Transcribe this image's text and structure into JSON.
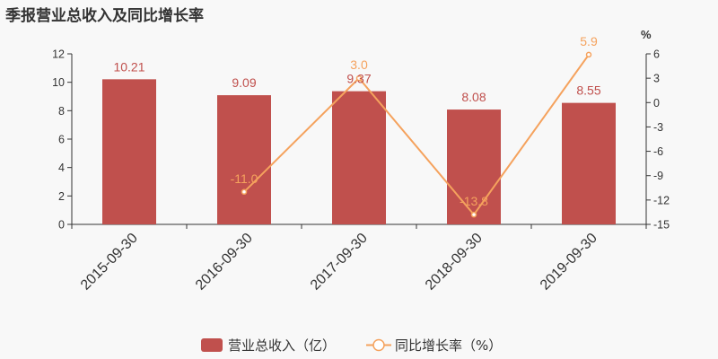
{
  "title": "季报营业总收入及同比增长率",
  "chart_data": {
    "type": "bar",
    "categories": [
      "2015-09-30",
      "2016-09-30",
      "2017-09-30",
      "2018-09-30",
      "2019-09-30"
    ],
    "series": [
      {
        "name": "营业总收入（亿）",
        "type": "bar",
        "axis": "left",
        "color": "#c0504d",
        "values": [
          10.21,
          9.09,
          9.37,
          8.08,
          8.55
        ],
        "labels": [
          "10.21",
          "9.09",
          "9.37",
          "8.08",
          "8.55"
        ]
      },
      {
        "name": "同比增长率（%）",
        "type": "line",
        "axis": "right",
        "color": "#f5a25d",
        "values": [
          null,
          -11.0,
          3.0,
          -13.8,
          5.9
        ],
        "labels": [
          "",
          "-11.0",
          "3.0",
          "-13.8",
          "5.9"
        ]
      }
    ],
    "left_axis": {
      "min": 0,
      "max": 12,
      "ticks": [
        "0",
        "2",
        "4",
        "6",
        "8",
        "10",
        "12"
      ]
    },
    "right_axis": {
      "min": -15,
      "max": 6,
      "unit": "%",
      "ticks": [
        "-15",
        "-12",
        "-9",
        "-6",
        "-3",
        "0",
        "3",
        "6"
      ]
    },
    "grid": false,
    "legend_position": "bottom-center"
  }
}
